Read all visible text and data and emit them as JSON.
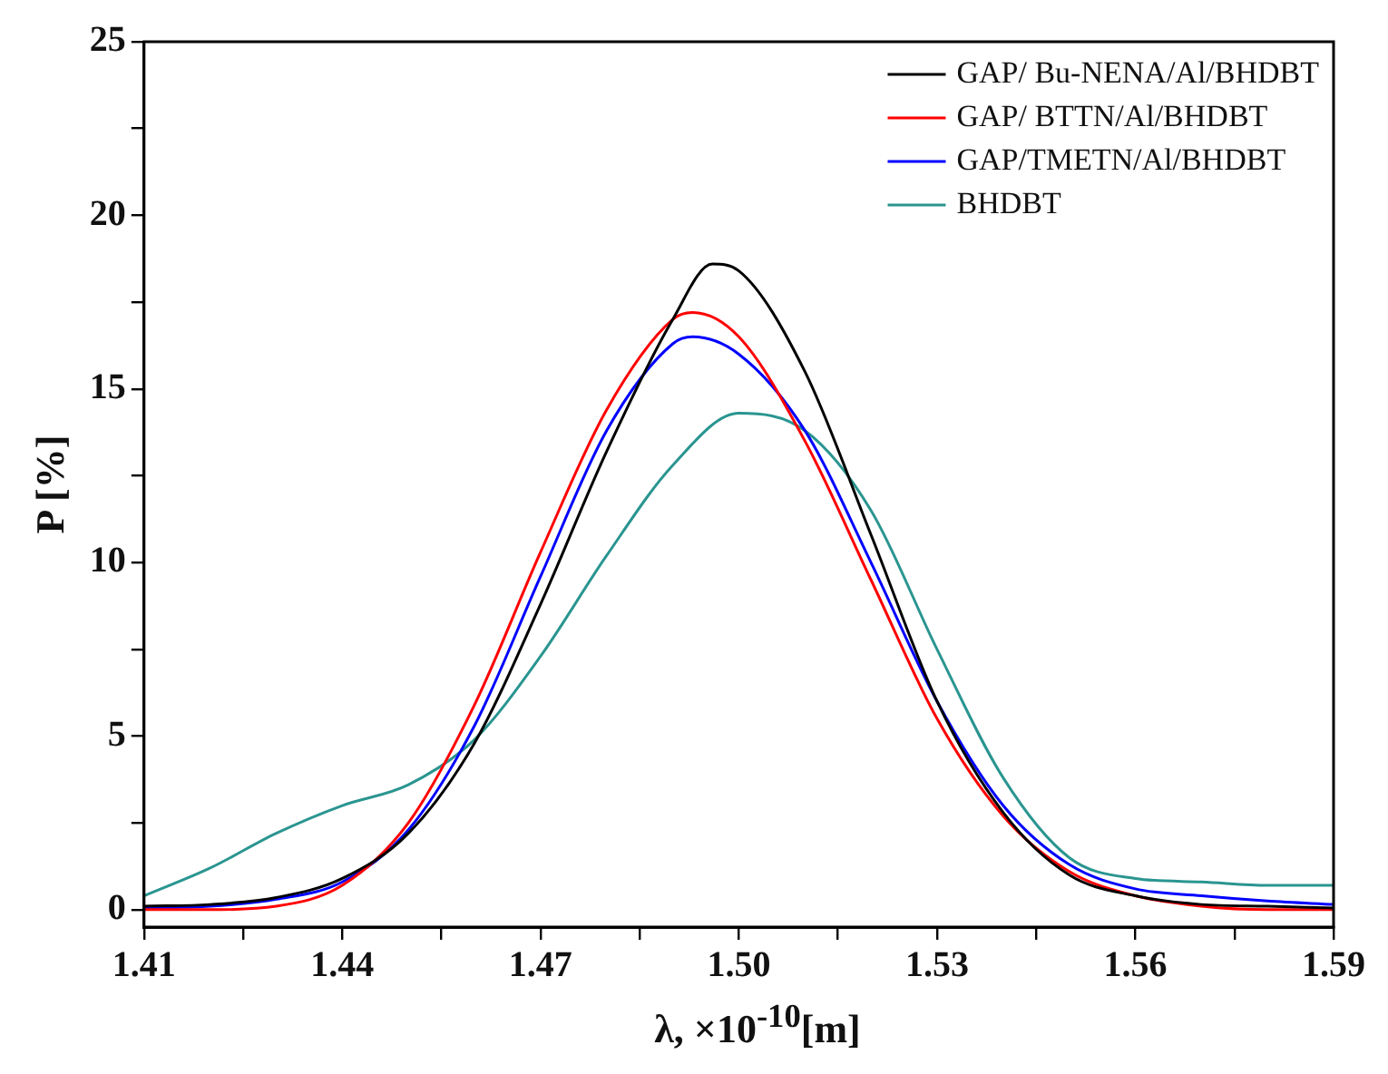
{
  "chart_data": {
    "type": "line",
    "xlabel": "λ, ×10$^{-10}$[m]",
    "ylabel": "P [%]",
    "xlim": [
      1.41,
      1.59
    ],
    "xticks": [
      1.41,
      {
        "value": 1.425,
        "label": null
      },
      1.44,
      {
        "value": 1.455,
        "label": null
      },
      1.47,
      {
        "value": 1.485,
        "label": null
      },
      {
        "value": 1.5,
        "label": "1.50"
      },
      {
        "value": 1.515,
        "label": null
      },
      1.53,
      {
        "value": 1.545,
        "label": null
      },
      1.56,
      {
        "value": 1.575,
        "label": null
      },
      1.59
    ],
    "ylim": [
      -0.5,
      25
    ],
    "yticks": [
      0,
      {
        "value": 2.5,
        "label": null
      },
      5,
      {
        "value": 7.5,
        "label": null
      },
      10,
      {
        "value": 12.5,
        "label": null
      },
      15,
      {
        "value": 17.5,
        "label": null
      },
      20,
      {
        "value": 22.5,
        "label": null
      },
      25
    ],
    "grid": false,
    "legend": "top right",
    "marker": "none",
    "line_style": "solid",
    "series": [
      {
        "name": "GAP/ Bu-NENA/Al/BHDBT",
        "color": "#000000",
        "x": [
          1.41,
          1.42,
          1.43,
          1.44,
          1.45,
          1.46,
          1.47,
          1.48,
          1.49,
          1.496,
          1.5,
          1.51,
          1.52,
          1.53,
          1.54,
          1.55,
          1.56,
          1.57,
          1.58,
          1.59
        ],
        "values": [
          0.1,
          0.15,
          0.35,
          0.9,
          2.2,
          4.8,
          8.8,
          13.2,
          17.0,
          18.6,
          18.4,
          15.5,
          10.8,
          6.0,
          2.8,
          1.0,
          0.4,
          0.15,
          0.1,
          0.05
        ]
      },
      {
        "name": "GAP/ BTTN/Al/BHDBT",
        "color": "#ff0000",
        "x": [
          1.41,
          1.42,
          1.43,
          1.44,
          1.45,
          1.46,
          1.47,
          1.48,
          1.49,
          1.493,
          1.5,
          1.51,
          1.52,
          1.53,
          1.54,
          1.55,
          1.56,
          1.57,
          1.58,
          1.59
        ],
        "values": [
          0,
          0,
          0.1,
          0.7,
          2.5,
          5.9,
          10.3,
          14.4,
          17.0,
          17.2,
          16.5,
          13.5,
          9.5,
          5.5,
          2.7,
          1.1,
          0.4,
          0.1,
          0,
          0
        ]
      },
      {
        "name": "GAP/TMETN/Al/BHDBT",
        "color": "#0000ff",
        "x": [
          1.41,
          1.42,
          1.43,
          1.44,
          1.45,
          1.46,
          1.47,
          1.48,
          1.49,
          1.493,
          1.5,
          1.51,
          1.52,
          1.53,
          1.54,
          1.55,
          1.56,
          1.57,
          1.58,
          1.59
        ],
        "values": [
          0.05,
          0.1,
          0.3,
          0.8,
          2.3,
          5.3,
          9.6,
          13.8,
          16.3,
          16.5,
          16.0,
          13.8,
          10.0,
          6.0,
          3.0,
          1.3,
          0.6,
          0.4,
          0.25,
          0.15
        ]
      },
      {
        "name": "BHDBT",
        "color": "#2a9590",
        "x": [
          1.41,
          1.42,
          1.43,
          1.44,
          1.45,
          1.46,
          1.47,
          1.48,
          1.49,
          1.5,
          1.51,
          1.52,
          1.53,
          1.54,
          1.55,
          1.56,
          1.57,
          1.58,
          1.59
        ],
        "values": [
          0.4,
          1.2,
          2.2,
          3.0,
          3.6,
          4.9,
          7.3,
          10.2,
          12.8,
          14.3,
          13.8,
          11.5,
          7.5,
          3.8,
          1.5,
          0.9,
          0.8,
          0.7,
          0.7
        ]
      }
    ]
  }
}
